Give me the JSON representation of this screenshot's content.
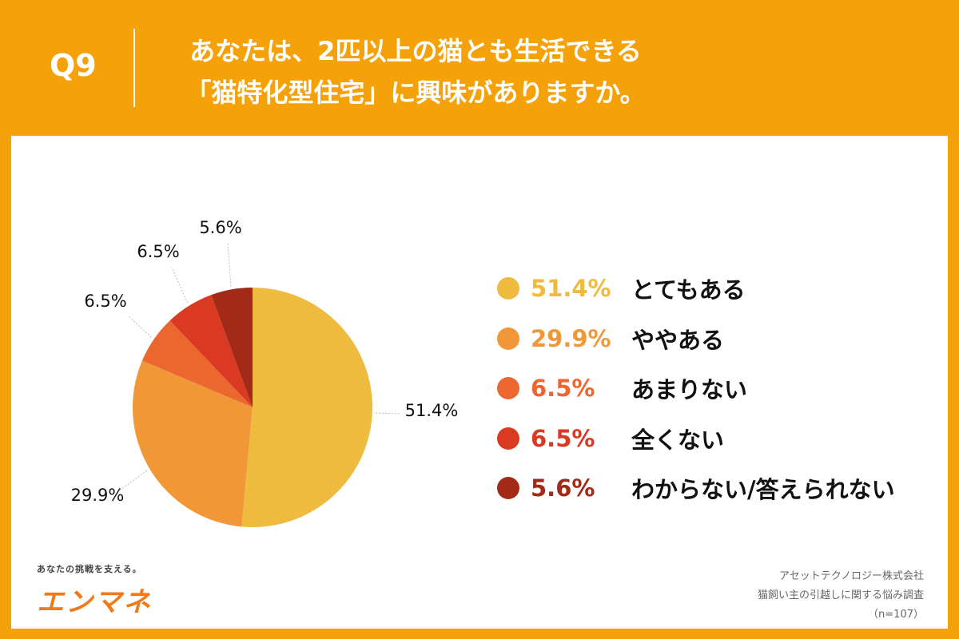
{
  "header": {
    "question_no": "Q9",
    "title_line1": "あなたは、2匹以上の猫とも生活できる",
    "title_line2": "「猫特化型住宅」に興味がありますか。"
  },
  "chart_data": {
    "type": "pie",
    "title": "あなたは、2匹以上の猫とも生活できる「猫特化型住宅」に興味がありますか。",
    "categories": [
      "とてもある",
      "ややある",
      "あまりない",
      "全くない",
      "わからない/答えられない"
    ],
    "values": [
      51.4,
      29.9,
      6.5,
      6.5,
      5.6
    ],
    "labels": [
      "51.4%",
      "29.9%",
      "6.5%",
      "6.5%",
      "5.6%"
    ],
    "colors": [
      "#EFBB3F",
      "#F09838",
      "#EC6630",
      "#DA3A22",
      "#A42A18"
    ],
    "start": "12 o'clock, clockwise",
    "legend_position": "right"
  },
  "footer": {
    "brand_tagline": "あなたの挑戦を支える。",
    "brand_logo": "エンマネ",
    "source_company": "アセットテクノロジー株式会社",
    "source_survey": "猫飼い主の引越しに関する悩み調査",
    "source_n": "（n=107）"
  }
}
